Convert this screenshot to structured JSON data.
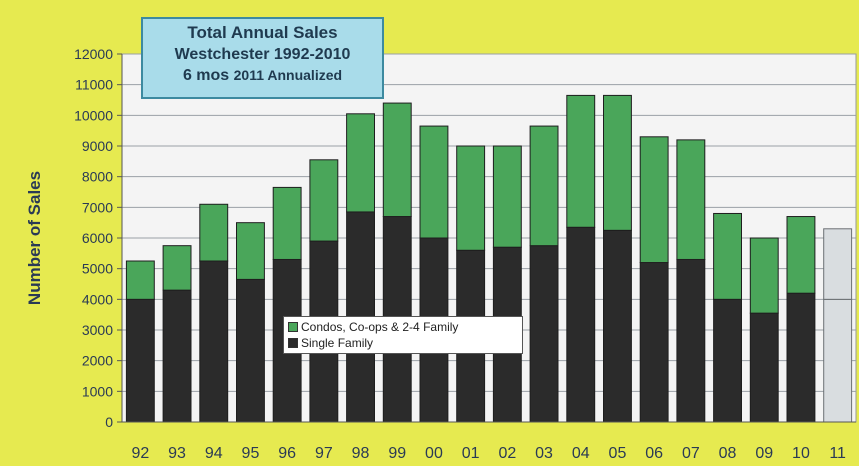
{
  "title": {
    "line1": "Total Annual Sales",
    "line2": "Westchester 1992-2010",
    "line3_bold": "6 mos",
    "line3_rest": "2011 Annualized"
  },
  "colors": {
    "background": "#e6ea50",
    "plot": "#f4f4f4",
    "single_family": "#2b2b2b",
    "condos": "#4aa65a",
    "annualized": "#d9dde0"
  },
  "chart_data": {
    "type": "bar",
    "stacked": true,
    "categories": [
      "92",
      "93",
      "94",
      "95",
      "96",
      "97",
      "98",
      "99",
      "00",
      "01",
      "02",
      "03",
      "04",
      "05",
      "06",
      "07",
      "08",
      "09",
      "10",
      "11"
    ],
    "series": [
      {
        "name": "Single Family",
        "values": [
          4000,
          4300,
          5250,
          4650,
          5300,
          5900,
          6850,
          6700,
          6000,
          5600,
          5700,
          5750,
          6350,
          6250,
          5200,
          5300,
          4000,
          3550,
          4200,
          4000
        ]
      },
      {
        "name": "Condos, Co-ops & 2-4 Family",
        "values": [
          1250,
          1450,
          1850,
          1850,
          2350,
          2650,
          3200,
          3700,
          3650,
          3400,
          3300,
          3900,
          4300,
          4400,
          4100,
          3900,
          2800,
          2450,
          2500,
          2300
        ]
      }
    ],
    "annualized_category": "11",
    "ylabel": "Number of Sales",
    "xlabel": "",
    "ylim": [
      0,
      12000
    ],
    "yticks": [
      "0",
      "1000",
      "2000",
      "3000",
      "4000",
      "5000",
      "6000",
      "7000",
      "8000",
      "9000",
      "10000",
      "11000",
      "12000"
    ],
    "grid": true,
    "legend_position": "lower-center"
  }
}
